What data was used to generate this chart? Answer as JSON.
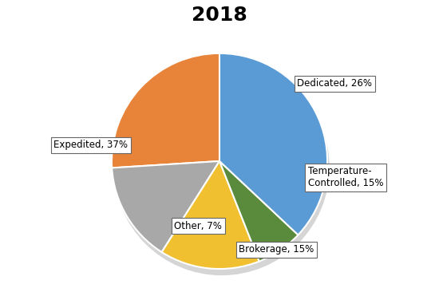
{
  "title": "2018",
  "title_fontsize": 18,
  "title_fontweight": "bold",
  "slices": [
    {
      "label": "Dedicated, 26%",
      "value": 26,
      "color": "#E8833A"
    },
    {
      "label": "Temperature-\nControlled, 15%",
      "value": 15,
      "color": "#A8A8A8"
    },
    {
      "label": "Brokerage, 15%",
      "value": 15,
      "color": "#F0C030"
    },
    {
      "label": "Other, 7%",
      "value": 7,
      "color": "#5A8A3C"
    },
    {
      "label": "Expedited, 37%",
      "value": 37,
      "color": "#5B9BD5"
    }
  ],
  "startangle": 90,
  "background_color": "#ffffff",
  "label_fontsize": 8.5,
  "label_bbox": {
    "boxstyle": "square,pad=0.3",
    "facecolor": "white",
    "edgecolor": "#666666",
    "linewidth": 0.8
  },
  "figsize": [
    5.5,
    3.71
  ],
  "dpi": 100
}
